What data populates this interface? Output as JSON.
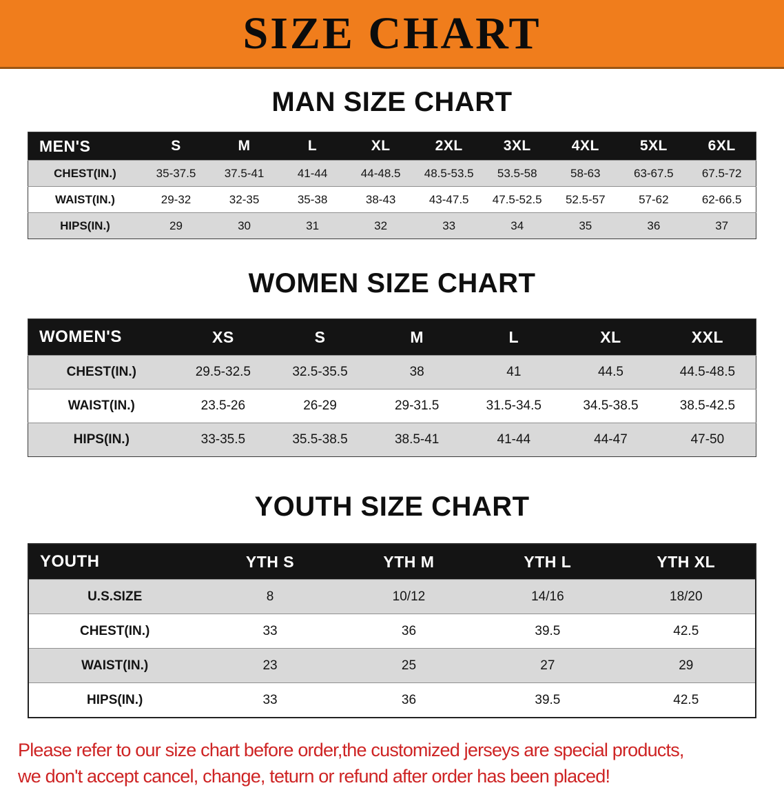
{
  "banner": {
    "title": "SIZE CHART"
  },
  "colors": {
    "banner_bg": "#F07D1C",
    "table_header_bg": "#141414",
    "row_shade_gray": "#D9D9D9",
    "disclaimer_red": "#CE2424"
  },
  "chart_data": [
    {
      "type": "table",
      "title": "MAN SIZE CHART",
      "columns": [
        "MEN'S",
        "S",
        "M",
        "L",
        "XL",
        "2XL",
        "3XL",
        "4XL",
        "5XL",
        "6XL"
      ],
      "rows": [
        [
          "CHEST(IN.)",
          "35-37.5",
          "37.5-41",
          "41-44",
          "44-48.5",
          "48.5-53.5",
          "53.5-58",
          "58-63",
          "63-67.5",
          "67.5-72"
        ],
        [
          "WAIST(IN.)",
          "29-32",
          "32-35",
          "35-38",
          "38-43",
          "43-47.5",
          "47.5-52.5",
          "52.5-57",
          "57-62",
          "62-66.5"
        ],
        [
          "HIPS(IN.)",
          "29",
          "30",
          "31",
          "32",
          "33",
          "34",
          "35",
          "36",
          "37"
        ]
      ]
    },
    {
      "type": "table",
      "title": "WOMEN SIZE CHART",
      "columns": [
        "WOMEN'S",
        "XS",
        "S",
        "M",
        "L",
        "XL",
        "XXL"
      ],
      "rows": [
        [
          "CHEST(IN.)",
          "29.5-32.5",
          "32.5-35.5",
          "38",
          "41",
          "44.5",
          "44.5-48.5"
        ],
        [
          "WAIST(IN.)",
          "23.5-26",
          "26-29",
          "29-31.5",
          "31.5-34.5",
          "34.5-38.5",
          "38.5-42.5"
        ],
        [
          "HIPS(IN.)",
          "33-35.5",
          "35.5-38.5",
          "38.5-41",
          "41-44",
          "44-47",
          "47-50"
        ]
      ]
    },
    {
      "type": "table",
      "title": "YOUTH SIZE CHART",
      "columns": [
        "YOUTH",
        "YTH S",
        "YTH M",
        "YTH L",
        "YTH XL"
      ],
      "rows": [
        [
          "U.S.SIZE",
          "8",
          "10/12",
          "14/16",
          "18/20"
        ],
        [
          "CHEST(IN.)",
          "33",
          "36",
          "39.5",
          "42.5"
        ],
        [
          "WAIST(IN.)",
          "23",
          "25",
          "27",
          "29"
        ],
        [
          "HIPS(IN.)",
          "33",
          "36",
          "39.5",
          "42.5"
        ]
      ]
    }
  ],
  "disclaimer": {
    "line1": "Please refer to our size chart before order,the customized jerseys are special products,",
    "line2": "we don't accept cancel, change, teturn or refund after order has been placed!"
  }
}
